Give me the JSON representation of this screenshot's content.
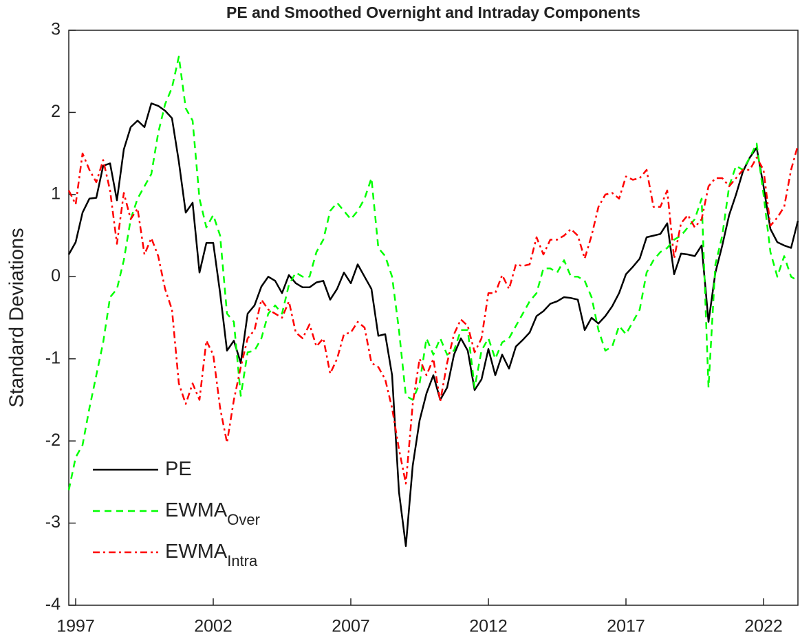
{
  "chart_data": {
    "type": "line",
    "title": "PE and Smoothed Overnight and Intraday Components",
    "y_label": "Standard Deviations",
    "x": [
      1996.75,
      1997,
      1997.25,
      1997.5,
      1997.75,
      1998,
      1998.25,
      1998.5,
      1998.75,
      1999,
      1999.25,
      1999.5,
      1999.75,
      2000,
      2000.25,
      2000.5,
      2000.75,
      2001,
      2001.25,
      2001.5,
      2001.75,
      2002,
      2002.25,
      2002.5,
      2002.75,
      2003,
      2003.25,
      2003.5,
      2003.75,
      2004,
      2004.25,
      2004.5,
      2004.75,
      2005,
      2005.25,
      2005.5,
      2005.75,
      2006,
      2006.25,
      2006.5,
      2006.75,
      2007,
      2007.25,
      2007.5,
      2007.75,
      2008,
      2008.25,
      2008.5,
      2008.75,
      2009,
      2009.25,
      2009.5,
      2009.75,
      2010,
      2010.25,
      2010.5,
      2010.75,
      2011,
      2011.25,
      2011.5,
      2011.75,
      2012,
      2012.25,
      2012.5,
      2012.75,
      2013,
      2013.25,
      2013.5,
      2013.75,
      2014,
      2014.25,
      2014.5,
      2014.75,
      2015,
      2015.25,
      2015.5,
      2015.75,
      2016,
      2016.25,
      2016.5,
      2016.75,
      2017,
      2017.25,
      2017.5,
      2017.75,
      2018,
      2018.25,
      2018.5,
      2018.75,
      2019,
      2019.25,
      2019.5,
      2019.75,
      2020,
      2020.25,
      2020.5,
      2020.75,
      2021,
      2021.25,
      2021.5,
      2021.75,
      2022,
      2022.25,
      2022.5,
      2022.75,
      2023,
      2023.25
    ],
    "series": [
      {
        "name": "PE",
        "color": "#000000",
        "linestyle": "solid",
        "values": [
          0.27,
          0.42,
          0.78,
          0.95,
          0.96,
          1.35,
          1.38,
          0.93,
          1.55,
          1.82,
          1.9,
          1.82,
          2.11,
          2.08,
          2.02,
          1.93,
          1.4,
          0.78,
          0.9,
          0.05,
          0.41,
          0.41,
          -0.2,
          -0.9,
          -0.78,
          -1.05,
          -0.45,
          -0.35,
          -0.12,
          0,
          -0.05,
          -0.2,
          0.02,
          -0.08,
          -0.13,
          -0.13,
          -0.07,
          -0.05,
          -0.28,
          -0.15,
          0.05,
          -0.08,
          0.15,
          0,
          -0.15,
          -0.72,
          -0.7,
          -1.2,
          -2.62,
          -3.28,
          -2.3,
          -1.75,
          -1.42,
          -1.2,
          -1.5,
          -1.35,
          -0.95,
          -0.75,
          -0.9,
          -1.38,
          -1.25,
          -0.88,
          -1.2,
          -0.95,
          -1.12,
          -0.85,
          -0.77,
          -0.68,
          -0.48,
          -0.42,
          -0.33,
          -0.3,
          -0.25,
          -0.26,
          -0.28,
          -0.65,
          -0.5,
          -0.57,
          -0.48,
          -0.36,
          -0.2,
          0.03,
          0.12,
          0.22,
          0.48,
          0.5,
          0.52,
          0.65,
          0.03,
          0.28,
          0.27,
          0.25,
          0.38,
          -0.55,
          0.05,
          0.38,
          0.75,
          1.0,
          1.28,
          1.45,
          1.57,
          1.1,
          0.58,
          0.42,
          0.38,
          0.35,
          0.68
        ]
      },
      {
        "name": "EWMA",
        "subscript": "Over",
        "color": "#00ff00",
        "linestyle": "dashed",
        "values": [
          -2.6,
          -2.2,
          -2.05,
          -1.6,
          -1.2,
          -0.8,
          -0.25,
          -0.15,
          0.2,
          0.7,
          0.95,
          1.1,
          1.25,
          1.75,
          2.1,
          2.3,
          2.68,
          2.05,
          1.9,
          0.95,
          0.6,
          0.75,
          0.5,
          -0.45,
          -0.55,
          -1.45,
          -0.92,
          -0.9,
          -0.75,
          -0.45,
          -0.35,
          -0.45,
          -0.1,
          0.05,
          0,
          0,
          0.3,
          0.45,
          0.8,
          0.9,
          0.8,
          0.7,
          0.8,
          0.95,
          1.2,
          0.35,
          0.25,
          0,
          -0.65,
          -1.45,
          -1.5,
          -1.3,
          -0.75,
          -0.95,
          -0.75,
          -0.95,
          -0.9,
          -0.65,
          -0.65,
          -1.35,
          -0.9,
          -0.75,
          -1.0,
          -0.8,
          -0.75,
          -0.6,
          -0.45,
          -0.3,
          -0.2,
          0.1,
          0.1,
          0.05,
          0.2,
          0,
          0,
          -0.05,
          -0.25,
          -0.65,
          -0.9,
          -0.85,
          -0.6,
          -0.7,
          -0.55,
          -0.4,
          0.05,
          0.2,
          0.3,
          0.35,
          0.45,
          0.5,
          0.6,
          0.7,
          0.95,
          -1.35,
          0.15,
          0.5,
          1.1,
          1.35,
          1.3,
          1.45,
          1.62,
          1.0,
          0.3,
          0,
          0.25,
          0,
          -0.05
        ]
      },
      {
        "name": "EWMA",
        "subscript": "Intra",
        "color": "#ff0000",
        "linestyle": "dashdot",
        "values": [
          1.05,
          0.88,
          1.5,
          1.3,
          1.15,
          1.42,
          1.05,
          0.4,
          1.02,
          0.7,
          0.83,
          0.27,
          0.47,
          0.25,
          -0.15,
          -0.4,
          -1.3,
          -1.55,
          -1.3,
          -1.5,
          -0.78,
          -0.95,
          -1.6,
          -2.02,
          -1.5,
          -1.1,
          -0.75,
          -0.65,
          -0.28,
          -0.4,
          -0.45,
          -0.5,
          -0.3,
          -0.68,
          -0.75,
          -0.58,
          -0.85,
          -0.75,
          -1.18,
          -1.0,
          -0.7,
          -0.68,
          -0.55,
          -0.62,
          -1.05,
          -1.1,
          -1.25,
          -1.6,
          -2.1,
          -2.52,
          -1.55,
          -1.0,
          -1.2,
          -1.0,
          -1.52,
          -1.05,
          -0.7,
          -0.52,
          -0.6,
          -0.92,
          -0.75,
          -0.2,
          -0.2,
          0.02,
          -0.15,
          0.15,
          0.13,
          0.15,
          0.48,
          0.27,
          0.45,
          0.45,
          0.5,
          0.58,
          0.5,
          0.22,
          0.5,
          0.85,
          1.0,
          1.02,
          0.95,
          1.22,
          1.18,
          1.2,
          1.3,
          0.85,
          0.85,
          1.05,
          0.22,
          0.65,
          0.75,
          0.6,
          0.7,
          1.1,
          1.2,
          1.2,
          1.1,
          1.2,
          1.3,
          1.3,
          1.45,
          1.3,
          0.62,
          0.72,
          0.85,
          1.3,
          1.6
        ]
      }
    ],
    "xlim": [
      1996.75,
      2023.25
    ],
    "xticks": [
      1997,
      2002,
      2007,
      2012,
      2017,
      2022
    ],
    "ylim": [
      -4,
      3
    ],
    "yticks": [
      -4,
      -3,
      -2,
      -1,
      0,
      1,
      2,
      3
    ],
    "legend": "lower left",
    "grid": false
  }
}
